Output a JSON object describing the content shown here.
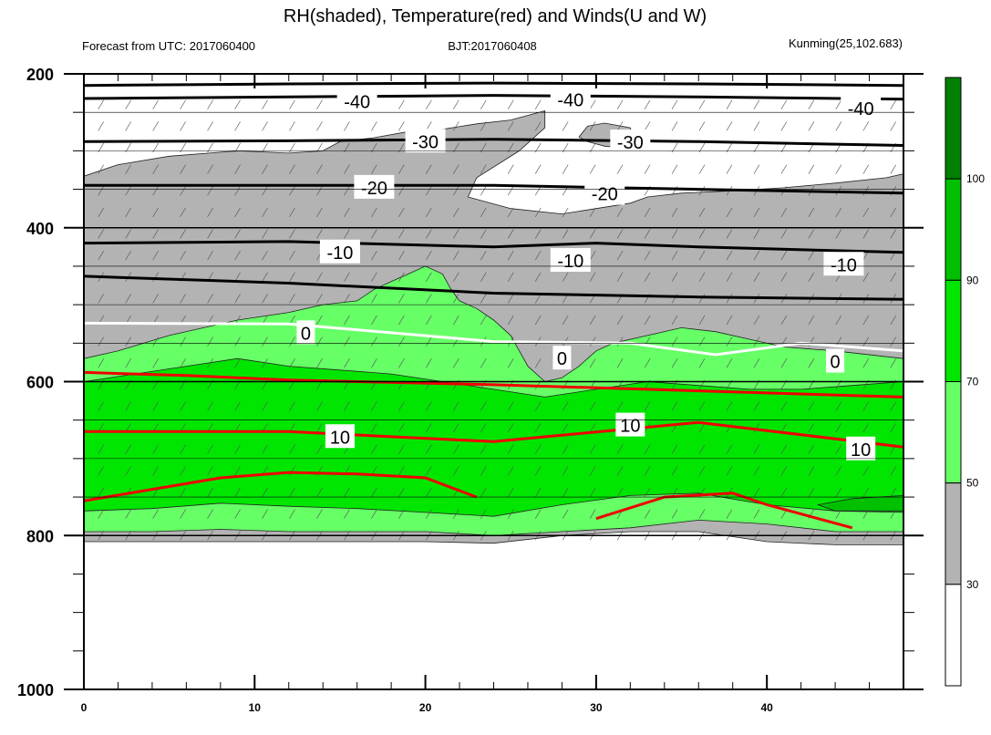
{
  "chart_data": {
    "type": "contour",
    "title": "RH(shaded), Temperature(red) and Winds(U and W)",
    "subtitle_left": "Forecast from UTC: 2017060400",
    "subtitle_center": "BJT:2017060408",
    "subtitle_right": "Kunming(25,102.683)",
    "x": {
      "range": [
        0,
        48
      ],
      "ticks": [
        0,
        10,
        20,
        30,
        40
      ]
    },
    "y": {
      "range": [
        200,
        1000
      ],
      "ticks": [
        200,
        400,
        600,
        800,
        1000
      ],
      "inverted": true
    },
    "colorbar": {
      "levels": [
        30,
        50,
        70,
        90,
        100
      ],
      "colors": [
        "#ffffff",
        "#b3b3b3",
        "#66ff66",
        "#00e600",
        "#00c000",
        "#008000"
      ]
    },
    "rh_regions": [
      {
        "level": 30,
        "points": [
          [
            0,
            333
          ],
          [
            2,
            318
          ],
          [
            5,
            307
          ],
          [
            9,
            300
          ],
          [
            12,
            303
          ],
          [
            14,
            300
          ],
          [
            15,
            288
          ],
          [
            17,
            283
          ],
          [
            19,
            275
          ],
          [
            21,
            272
          ],
          [
            23,
            265
          ],
          [
            25,
            260
          ],
          [
            27,
            248
          ],
          [
            27,
            270
          ],
          [
            25.5,
            300
          ],
          [
            23,
            335
          ],
          [
            22.5,
            360
          ],
          [
            25,
            375
          ],
          [
            28,
            382
          ],
          [
            30,
            375
          ],
          [
            32,
            368
          ],
          [
            33,
            360
          ],
          [
            35,
            355
          ],
          [
            38,
            352
          ],
          [
            41,
            348
          ],
          [
            44,
            342
          ],
          [
            47,
            335
          ],
          [
            48,
            330
          ],
          [
            48,
            812
          ],
          [
            44,
            812
          ],
          [
            40,
            808
          ],
          [
            36,
            795
          ],
          [
            32,
            795
          ],
          [
            28,
            800
          ],
          [
            24,
            810
          ],
          [
            20,
            808
          ],
          [
            16,
            808
          ],
          [
            12,
            808
          ],
          [
            8,
            808
          ],
          [
            4,
            808
          ],
          [
            0,
            808
          ]
        ]
      },
      {
        "level": 30,
        "points": [
          [
            29,
            282
          ],
          [
            29.5,
            268
          ],
          [
            30.5,
            264
          ],
          [
            32,
            270
          ],
          [
            32.2,
            285
          ],
          [
            31.5,
            296
          ],
          [
            30.5,
            294
          ],
          [
            29.5,
            288
          ]
        ]
      },
      {
        "level": 50,
        "points": [
          [
            0,
            570
          ],
          [
            2,
            560
          ],
          [
            5,
            540
          ],
          [
            9,
            520
          ],
          [
            12,
            510
          ],
          [
            14,
            500
          ],
          [
            16,
            495
          ],
          [
            17,
            480
          ],
          [
            18,
            470
          ],
          [
            19,
            460
          ],
          [
            20,
            450
          ],
          [
            21,
            460
          ],
          [
            21.5,
            480
          ],
          [
            22,
            495
          ],
          [
            23,
            505
          ],
          [
            24,
            520
          ],
          [
            25,
            540
          ],
          [
            25.5,
            560
          ],
          [
            26,
            580
          ],
          [
            27,
            600
          ],
          [
            28,
            595
          ],
          [
            29,
            580
          ],
          [
            30,
            560
          ],
          [
            31,
            550
          ],
          [
            33,
            540
          ],
          [
            35,
            530
          ],
          [
            37,
            535
          ],
          [
            39,
            545
          ],
          [
            41,
            555
          ],
          [
            44,
            560
          ],
          [
            48,
            570
          ],
          [
            48,
            795
          ],
          [
            44,
            795
          ],
          [
            40,
            785
          ],
          [
            36,
            780
          ],
          [
            32,
            790
          ],
          [
            28,
            795
          ],
          [
            24,
            800
          ],
          [
            20,
            795
          ],
          [
            16,
            795
          ],
          [
            12,
            795
          ],
          [
            8,
            792
          ],
          [
            4,
            795
          ],
          [
            0,
            795
          ]
        ]
      },
      {
        "level": 70,
        "points": [
          [
            0,
            600
          ],
          [
            3,
            590
          ],
          [
            6,
            580
          ],
          [
            9,
            570
          ],
          [
            12,
            580
          ],
          [
            15,
            585
          ],
          [
            18,
            590
          ],
          [
            21,
            600
          ],
          [
            24,
            610
          ],
          [
            27,
            620
          ],
          [
            30,
            610
          ],
          [
            33,
            600
          ],
          [
            36,
            605
          ],
          [
            39,
            610
          ],
          [
            42,
            610
          ],
          [
            45,
            605
          ],
          [
            48,
            600
          ],
          [
            48,
            770
          ],
          [
            44,
            768
          ],
          [
            40,
            760
          ],
          [
            36,
            745
          ],
          [
            32,
            748
          ],
          [
            28,
            760
          ],
          [
            24,
            775
          ],
          [
            20,
            770
          ],
          [
            16,
            765
          ],
          [
            12,
            762
          ],
          [
            8,
            758
          ],
          [
            4,
            765
          ],
          [
            0,
            768
          ]
        ]
      },
      {
        "level": 90,
        "points": [
          [
            43,
            760
          ],
          [
            45,
            752
          ],
          [
            48,
            748
          ],
          [
            48,
            768
          ],
          [
            44,
            768
          ]
        ]
      }
    ],
    "temperature_isotherms": [
      {
        "label": "-40",
        "color": "black",
        "points": [
          [
            0,
            215
          ],
          [
            12,
            213
          ],
          [
            24,
            212
          ],
          [
            36,
            213
          ],
          [
            48,
            215
          ]
        ]
      },
      {
        "label": "-40",
        "color": "black",
        "points": [
          [
            0,
            232
          ],
          [
            12,
            230
          ],
          [
            24,
            228
          ],
          [
            36,
            230
          ],
          [
            48,
            233
          ]
        ]
      },
      {
        "label": "-30",
        "color": "black",
        "points": [
          [
            0,
            288
          ],
          [
            12,
            287
          ],
          [
            24,
            285
          ],
          [
            36,
            288
          ],
          [
            48,
            293
          ]
        ]
      },
      {
        "label": "-20",
        "color": "black",
        "points": [
          [
            0,
            345
          ],
          [
            12,
            345
          ],
          [
            24,
            345
          ],
          [
            36,
            350
          ],
          [
            48,
            355
          ]
        ]
      },
      {
        "label": "-10",
        "color": "black",
        "points": [
          [
            0,
            420
          ],
          [
            12,
            418
          ],
          [
            24,
            425
          ],
          [
            30,
            420
          ],
          [
            36,
            425
          ],
          [
            48,
            432
          ]
        ]
      },
      {
        "label": "",
        "color": "black",
        "points": [
          [
            0,
            463
          ],
          [
            12,
            472
          ],
          [
            24,
            485
          ],
          [
            36,
            490
          ],
          [
            48,
            493
          ]
        ]
      },
      {
        "label": "0",
        "color": "white",
        "points": [
          [
            0,
            524
          ],
          [
            12,
            525
          ],
          [
            24,
            548
          ],
          [
            32,
            550
          ],
          [
            37,
            565
          ],
          [
            42,
            550
          ],
          [
            48,
            560
          ]
        ]
      },
      {
        "label": "",
        "color": "red",
        "points": [
          [
            0,
            588
          ],
          [
            6,
            592
          ],
          [
            12,
            598
          ],
          [
            24,
            604
          ],
          [
            36,
            612
          ],
          [
            48,
            620
          ]
        ]
      },
      {
        "label": "10",
        "color": "red",
        "points": [
          [
            0,
            665
          ],
          [
            12,
            665
          ],
          [
            24,
            678
          ],
          [
            36,
            653
          ],
          [
            48,
            685
          ]
        ]
      },
      {
        "label": "",
        "color": "red",
        "points": [
          [
            0,
            755
          ],
          [
            4,
            740
          ],
          [
            8,
            725
          ],
          [
            12,
            718
          ],
          [
            16,
            720
          ],
          [
            20,
            725
          ],
          [
            23,
            750
          ]
        ]
      },
      {
        "label": "",
        "color": "red",
        "points": [
          [
            30,
            778
          ],
          [
            34,
            750
          ],
          [
            38,
            745
          ],
          [
            40,
            760
          ],
          [
            45,
            790
          ]
        ]
      }
    ],
    "isotherm_labels": [
      {
        "text": "-40",
        "x": 16,
        "y": 236
      },
      {
        "text": "-40",
        "x": 28.5,
        "y": 234
      },
      {
        "text": "-40",
        "x": 45.5,
        "y": 245
      },
      {
        "text": "-30",
        "x": 20,
        "y": 288
      },
      {
        "text": "-30",
        "x": 32,
        "y": 289
      },
      {
        "text": "-20",
        "x": 17,
        "y": 348
      },
      {
        "text": "-20",
        "x": 30.5,
        "y": 356
      },
      {
        "text": "-10",
        "x": 15,
        "y": 432
      },
      {
        "text": "-10",
        "x": 28.5,
        "y": 443
      },
      {
        "text": "-10",
        "x": 44.5,
        "y": 448
      },
      {
        "text": "0",
        "x": 13,
        "y": 537
      },
      {
        "text": "0",
        "x": 28,
        "y": 570
      },
      {
        "text": "0",
        "x": 44,
        "y": 574
      },
      {
        "text": "10",
        "x": 15,
        "y": 672
      },
      {
        "text": "10",
        "x": 32,
        "y": 657
      },
      {
        "text": "10",
        "x": 45.5,
        "y": 688
      }
    ]
  }
}
